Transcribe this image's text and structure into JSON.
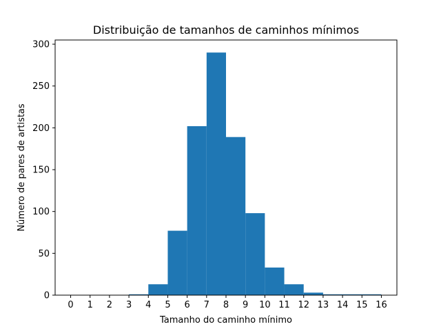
{
  "chart_data": {
    "type": "bar",
    "title": "Distribuição de tamanhos de caminhos mínimos",
    "xlabel": "Tamanho do caminho mínimo",
    "ylabel": "Número de pares de artistas",
    "bin_edges": [
      0,
      1,
      2,
      3,
      4,
      5,
      6,
      7,
      8,
      9,
      10,
      11,
      12,
      13,
      14,
      15,
      16
    ],
    "values": [
      0,
      0,
      0,
      1,
      13,
      77,
      202,
      290,
      189,
      98,
      33,
      13,
      3,
      1,
      1,
      1
    ],
    "xlim": [
      -0.8,
      16.8
    ],
    "ylim": [
      0,
      305
    ],
    "xticks": [
      "0",
      "1",
      "2",
      "3",
      "4",
      "5",
      "6",
      "7",
      "8",
      "9",
      "10",
      "11",
      "12",
      "13",
      "14",
      "15",
      "16"
    ],
    "yticks": [
      0,
      50,
      100,
      150,
      200,
      250,
      300
    ],
    "bar_color": "#1f77b4",
    "grid": false
  }
}
